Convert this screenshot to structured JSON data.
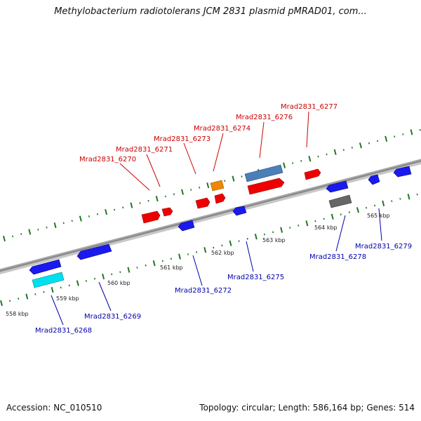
{
  "title": "Methylobacterium radiotolerans JCM 2831 plasmid pMRAD01, com...",
  "footer": {
    "accession": "Accession: NC_010510",
    "topology": "Topology: circular; Length: 586,164 bp; Genes: 514"
  },
  "colors": {
    "forward_label": "#cc0000",
    "reverse_label": "#0000aa",
    "backbone": "#808080",
    "tick": "#227722",
    "forward_gene": "#ee0000",
    "reverse_gene": "#1a1aee",
    "orange_gene": "#ee8800",
    "steelblue_gene": "#4a7fb8",
    "cyan_gene": "#00e0ee",
    "gray_gene": "#666666"
  },
  "scale_labels": [
    "558 kbp",
    "559 kbp",
    "560 kbp",
    "561 kbp",
    "562 kbp",
    "563 kbp",
    "564 kbp",
    "565 kbp"
  ],
  "gene_labels_forward": [
    "Mrad2831_6270",
    "Mrad2831_6271",
    "Mrad2831_6273",
    "Mrad2831_6274",
    "Mrad2831_6276",
    "Mrad2831_6277"
  ],
  "gene_labels_reverse": [
    "Mrad2831_6268",
    "Mrad2831_6269",
    "Mrad2831_6272",
    "Mrad2831_6275",
    "Mrad2831_6278",
    "Mrad2831_6279"
  ]
}
